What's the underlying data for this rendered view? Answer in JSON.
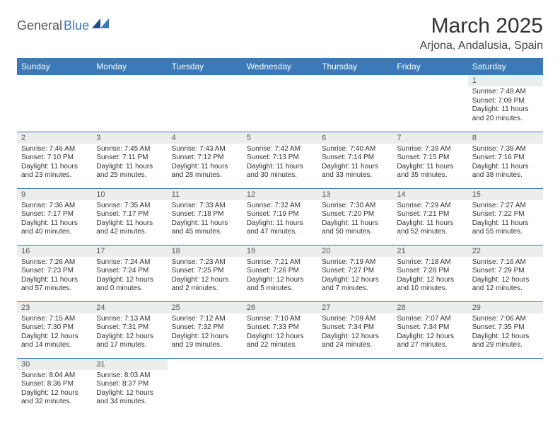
{
  "logo": {
    "general": "General",
    "blue": "Blue"
  },
  "header": {
    "title": "March 2025",
    "location": "Arjona, Andalusia, Spain"
  },
  "colors": {
    "header_bg": "#3a7ab8",
    "header_fg": "#ffffff",
    "daynum_bg": "#eceded",
    "border": "#3a7ab8",
    "text": "#333333"
  },
  "weekdays": [
    "Sunday",
    "Monday",
    "Tuesday",
    "Wednesday",
    "Thursday",
    "Friday",
    "Saturday"
  ],
  "weeks": [
    [
      null,
      null,
      null,
      null,
      null,
      null,
      {
        "d": "1",
        "sr": "Sunrise: 7:48 AM",
        "ss": "Sunset: 7:09 PM",
        "dl": "Daylight: 11 hours and 20 minutes."
      }
    ],
    [
      {
        "d": "2",
        "sr": "Sunrise: 7:46 AM",
        "ss": "Sunset: 7:10 PM",
        "dl": "Daylight: 11 hours and 23 minutes."
      },
      {
        "d": "3",
        "sr": "Sunrise: 7:45 AM",
        "ss": "Sunset: 7:11 PM",
        "dl": "Daylight: 11 hours and 25 minutes."
      },
      {
        "d": "4",
        "sr": "Sunrise: 7:43 AM",
        "ss": "Sunset: 7:12 PM",
        "dl": "Daylight: 11 hours and 28 minutes."
      },
      {
        "d": "5",
        "sr": "Sunrise: 7:42 AM",
        "ss": "Sunset: 7:13 PM",
        "dl": "Daylight: 11 hours and 30 minutes."
      },
      {
        "d": "6",
        "sr": "Sunrise: 7:40 AM",
        "ss": "Sunset: 7:14 PM",
        "dl": "Daylight: 11 hours and 33 minutes."
      },
      {
        "d": "7",
        "sr": "Sunrise: 7:39 AM",
        "ss": "Sunset: 7:15 PM",
        "dl": "Daylight: 11 hours and 35 minutes."
      },
      {
        "d": "8",
        "sr": "Sunrise: 7:38 AM",
        "ss": "Sunset: 7:16 PM",
        "dl": "Daylight: 11 hours and 38 minutes."
      }
    ],
    [
      {
        "d": "9",
        "sr": "Sunrise: 7:36 AM",
        "ss": "Sunset: 7:17 PM",
        "dl": "Daylight: 11 hours and 40 minutes."
      },
      {
        "d": "10",
        "sr": "Sunrise: 7:35 AM",
        "ss": "Sunset: 7:17 PM",
        "dl": "Daylight: 11 hours and 42 minutes."
      },
      {
        "d": "11",
        "sr": "Sunrise: 7:33 AM",
        "ss": "Sunset: 7:18 PM",
        "dl": "Daylight: 11 hours and 45 minutes."
      },
      {
        "d": "12",
        "sr": "Sunrise: 7:32 AM",
        "ss": "Sunset: 7:19 PM",
        "dl": "Daylight: 11 hours and 47 minutes."
      },
      {
        "d": "13",
        "sr": "Sunrise: 7:30 AM",
        "ss": "Sunset: 7:20 PM",
        "dl": "Daylight: 11 hours and 50 minutes."
      },
      {
        "d": "14",
        "sr": "Sunrise: 7:29 AM",
        "ss": "Sunset: 7:21 PM",
        "dl": "Daylight: 11 hours and 52 minutes."
      },
      {
        "d": "15",
        "sr": "Sunrise: 7:27 AM",
        "ss": "Sunset: 7:22 PM",
        "dl": "Daylight: 11 hours and 55 minutes."
      }
    ],
    [
      {
        "d": "16",
        "sr": "Sunrise: 7:26 AM",
        "ss": "Sunset: 7:23 PM",
        "dl": "Daylight: 11 hours and 57 minutes."
      },
      {
        "d": "17",
        "sr": "Sunrise: 7:24 AM",
        "ss": "Sunset: 7:24 PM",
        "dl": "Daylight: 12 hours and 0 minutes."
      },
      {
        "d": "18",
        "sr": "Sunrise: 7:23 AM",
        "ss": "Sunset: 7:25 PM",
        "dl": "Daylight: 12 hours and 2 minutes."
      },
      {
        "d": "19",
        "sr": "Sunrise: 7:21 AM",
        "ss": "Sunset: 7:26 PM",
        "dl": "Daylight: 12 hours and 5 minutes."
      },
      {
        "d": "20",
        "sr": "Sunrise: 7:19 AM",
        "ss": "Sunset: 7:27 PM",
        "dl": "Daylight: 12 hours and 7 minutes."
      },
      {
        "d": "21",
        "sr": "Sunrise: 7:18 AM",
        "ss": "Sunset: 7:28 PM",
        "dl": "Daylight: 12 hours and 10 minutes."
      },
      {
        "d": "22",
        "sr": "Sunrise: 7:16 AM",
        "ss": "Sunset: 7:29 PM",
        "dl": "Daylight: 12 hours and 12 minutes."
      }
    ],
    [
      {
        "d": "23",
        "sr": "Sunrise: 7:15 AM",
        "ss": "Sunset: 7:30 PM",
        "dl": "Daylight: 12 hours and 14 minutes."
      },
      {
        "d": "24",
        "sr": "Sunrise: 7:13 AM",
        "ss": "Sunset: 7:31 PM",
        "dl": "Daylight: 12 hours and 17 minutes."
      },
      {
        "d": "25",
        "sr": "Sunrise: 7:12 AM",
        "ss": "Sunset: 7:32 PM",
        "dl": "Daylight: 12 hours and 19 minutes."
      },
      {
        "d": "26",
        "sr": "Sunrise: 7:10 AM",
        "ss": "Sunset: 7:33 PM",
        "dl": "Daylight: 12 hours and 22 minutes."
      },
      {
        "d": "27",
        "sr": "Sunrise: 7:09 AM",
        "ss": "Sunset: 7:34 PM",
        "dl": "Daylight: 12 hours and 24 minutes."
      },
      {
        "d": "28",
        "sr": "Sunrise: 7:07 AM",
        "ss": "Sunset: 7:34 PM",
        "dl": "Daylight: 12 hours and 27 minutes."
      },
      {
        "d": "29",
        "sr": "Sunrise: 7:06 AM",
        "ss": "Sunset: 7:35 PM",
        "dl": "Daylight: 12 hours and 29 minutes."
      }
    ],
    [
      {
        "d": "30",
        "sr": "Sunrise: 8:04 AM",
        "ss": "Sunset: 8:36 PM",
        "dl": "Daylight: 12 hours and 32 minutes."
      },
      {
        "d": "31",
        "sr": "Sunrise: 8:03 AM",
        "ss": "Sunset: 8:37 PM",
        "dl": "Daylight: 12 hours and 34 minutes."
      },
      null,
      null,
      null,
      null,
      null
    ]
  ]
}
